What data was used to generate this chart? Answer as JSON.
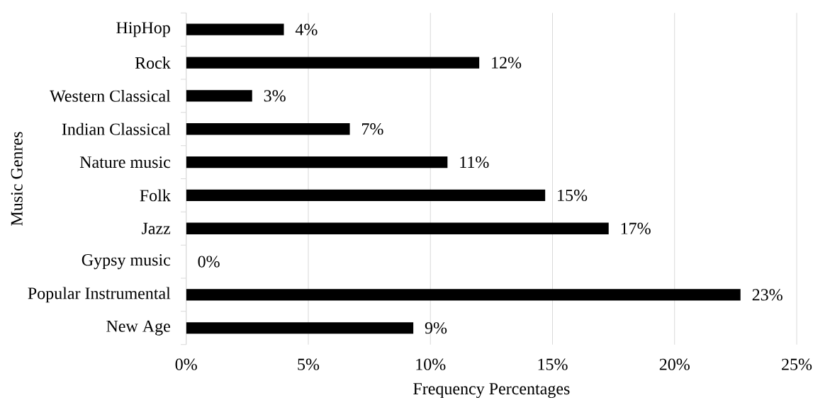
{
  "chart_data": {
    "type": "bar",
    "orientation": "horizontal",
    "xlabel": "Frequency Percentages",
    "ylabel": "Music Genres",
    "categories": [
      "HipHop",
      "Rock",
      "Western Classical",
      "Indian Classical",
      "Nature music",
      "Folk",
      "Jazz",
      "Gypsy music",
      "Popular Instrumental",
      "New Age"
    ],
    "values": [
      4,
      12,
      2.7,
      6.7,
      10.7,
      14.7,
      17.3,
      0,
      22.7,
      9.3
    ],
    "value_labels": [
      "4%",
      "12%",
      "3%",
      "7%",
      "11%",
      "15%",
      "17%",
      "0%",
      "23%",
      "9%"
    ],
    "color": "#000000",
    "xlim": [
      0,
      25
    ],
    "xticks": [
      {
        "value": 0,
        "label": "0%"
      },
      {
        "value": 5,
        "label": "5%"
      },
      {
        "value": 10,
        "label": "10%"
      },
      {
        "value": 15,
        "label": "15%"
      },
      {
        "value": 20,
        "label": "20%"
      },
      {
        "value": 25,
        "label": "25%"
      }
    ],
    "grid": "x"
  }
}
